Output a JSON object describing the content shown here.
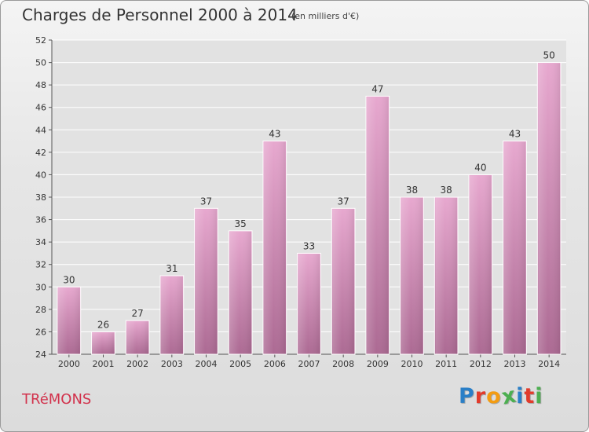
{
  "header": {
    "title": "Charges de Personnel 2000 à 2014",
    "subtitle": "(en milliers d'€)"
  },
  "footer": {
    "commune": "TRéMONS",
    "brand": "Proxiti",
    "brand_colors": [
      "#2a7fc7",
      "#e23b2b",
      "#f39c12",
      "#4caf50",
      "#2a7fc7",
      "#e23b2b",
      "#4caf50"
    ]
  },
  "chart_data": {
    "type": "bar",
    "title": "Charges de Personnel 2000 à 2014",
    "subtitle": "(en milliers d'€)",
    "xlabel": "",
    "ylabel": "",
    "categories": [
      "2000",
      "2001",
      "2002",
      "2003",
      "2004",
      "2005",
      "2006",
      "2007",
      "2008",
      "2009",
      "2010",
      "2011",
      "2012",
      "2013",
      "2014"
    ],
    "values": [
      30,
      26,
      27,
      31,
      37,
      35,
      43,
      33,
      37,
      47,
      38,
      38,
      40,
      43,
      50
    ],
    "ylim": [
      24,
      52
    ],
    "yticks": [
      24,
      26,
      28,
      30,
      32,
      34,
      36,
      38,
      40,
      42,
      44,
      46,
      48,
      50,
      52
    ],
    "grid": true,
    "bar_color": "#d98cb8",
    "data_labels": true
  }
}
